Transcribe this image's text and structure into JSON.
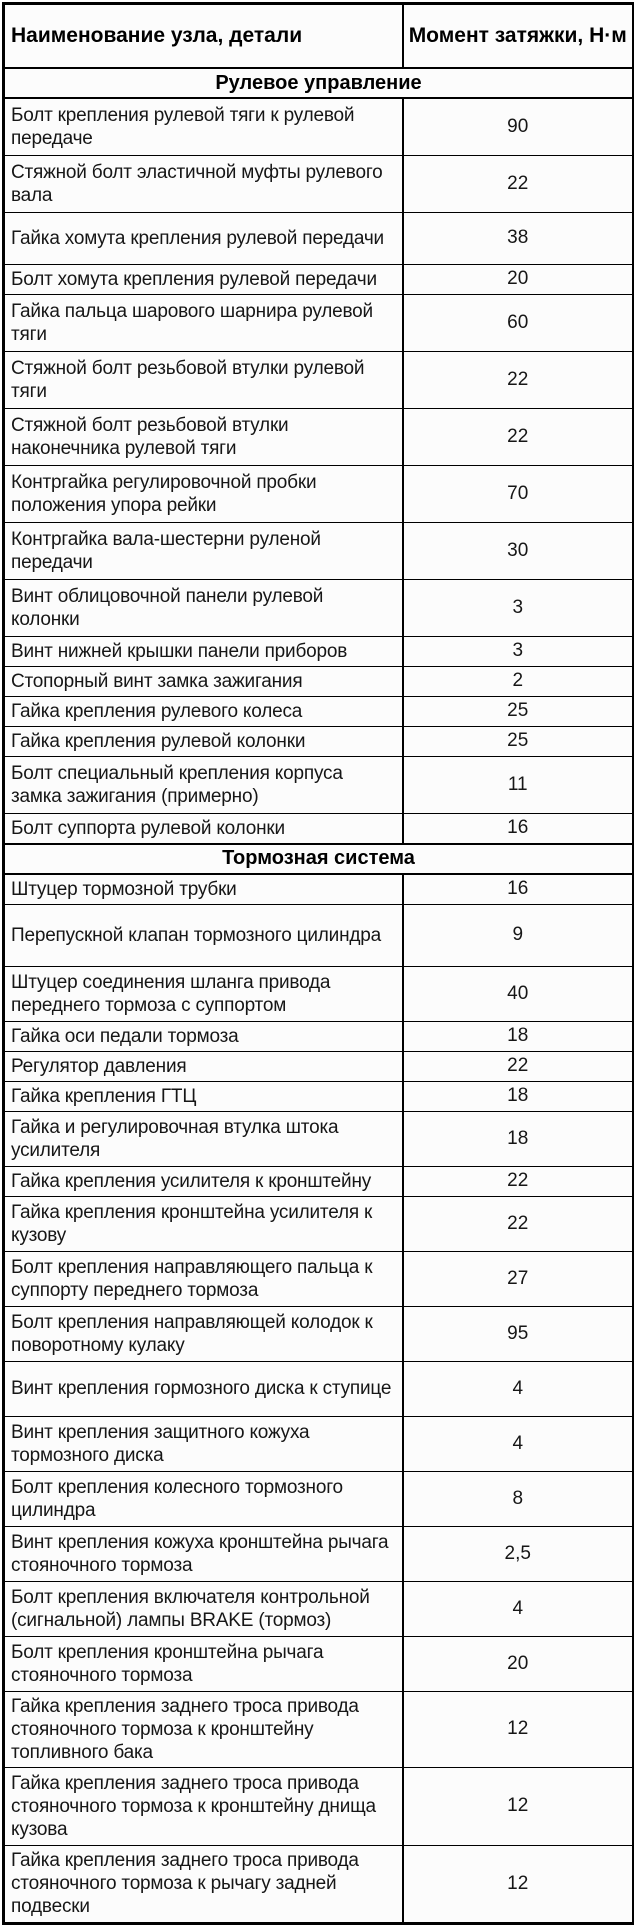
{
  "table": {
    "columns": [
      "Наименование узла, детали",
      "Момент затяжки, Н·м"
    ],
    "sections": [
      {
        "title": "Рулевое управление",
        "rows": [
          {
            "name": "Болт крепления рулевой тяги к рулевой передаче",
            "torque": "90"
          },
          {
            "name": "Стяжной болт эластичной муфты рулевого вала",
            "torque": "22"
          },
          {
            "name": "Гайка хомута крепления рулевой передачи",
            "torque": "38"
          },
          {
            "name": "Болт хомута крепления рулевой передачи",
            "torque": "20"
          },
          {
            "name": "Гайка пальца шарового шарнира рулевой тяги",
            "torque": "60"
          },
          {
            "name": "Стяжной болт резьбовой втулки рулевой тяги",
            "torque": "22"
          },
          {
            "name": "Стяжной болт резьбовой втулки наконечника рулевой тяги",
            "torque": "22"
          },
          {
            "name": "Контргайка регулировочной пробки положения упора рейки",
            "torque": "70"
          },
          {
            "name": "Контргайка вала-шестерни руленой передачи",
            "torque": "30"
          },
          {
            "name": "Винт облицовочной панели рулевой колонки",
            "torque": "3"
          },
          {
            "name": "Винт нижней крышки панели приборов",
            "torque": "3"
          },
          {
            "name": "Стопорный винт замка зажигания",
            "torque": "2"
          },
          {
            "name": "Гайка крепления рулевого колеса",
            "torque": "25"
          },
          {
            "name": "Гайка крепления рулевой колонки",
            "torque": "25"
          },
          {
            "name": "Болт специальный крепления корпуса замка зажигания (примерно)",
            "torque": "11"
          },
          {
            "name": "Болт суппорта рулевой колонки",
            "torque": "16"
          }
        ]
      },
      {
        "title": "Тормозная система",
        "rows": [
          {
            "name": "Штуцер тормозной трубки",
            "torque": "16"
          },
          {
            "name": "Перепускной клапан тормозного цилиндра",
            "torque": "9"
          },
          {
            "name": "Штуцер соединения шланга привода переднего тормоза с суппортом",
            "torque": "40"
          },
          {
            "name": "Гайка оси педали тормоза",
            "torque": "18"
          },
          {
            "name": "Регулятор давления",
            "torque": "22"
          },
          {
            "name": "Гайка крепления ГТЦ",
            "torque": "18"
          },
          {
            "name": "Гайка и регулировочная втулка штока усилителя",
            "torque": "18"
          },
          {
            "name": "Гайка крепления усилителя к кронштейну",
            "torque": "22"
          },
          {
            "name": "Гайка крепления кронштейна усилителя к кузову",
            "torque": "22"
          },
          {
            "name": "Болт крепления направляющего пальца к суппорту переднего тормоза",
            "torque": "27"
          },
          {
            "name": "Болт крепления направляющей колодок к поворотному кулаку",
            "torque": "95"
          },
          {
            "name": "Винт крепления гормозного диска к ступице",
            "torque": "4"
          },
          {
            "name": "Винт крепления защитного кожуха тормозного диска",
            "torque": "4"
          },
          {
            "name": "Болт крепления колесного тормозного цилиндра",
            "torque": "8"
          },
          {
            "name": "Винт крепления кожуха кронштейна рычага стояночного тормоза",
            "torque": "2,5"
          },
          {
            "name": "Болт крепления включателя контрольной (сигнальной) лампы BRAKE (тормоз)",
            "torque": "4"
          },
          {
            "name": "Болт крепления кронштейна рычага стояночного тормоза",
            "torque": "20"
          },
          {
            "name": "Гайка крепления заднего троса привода стояночного тормоза к кронштейну топливного бака",
            "torque": "12"
          },
          {
            "name": "Гайка крепления заднего троса привода стояночного тормоза к кронштейну днища кузова",
            "torque": "12"
          },
          {
            "name": "Гайка крепления заднего троса привода стояночного тормоза к рычагу задней подвески",
            "torque": "12"
          }
        ]
      }
    ]
  }
}
